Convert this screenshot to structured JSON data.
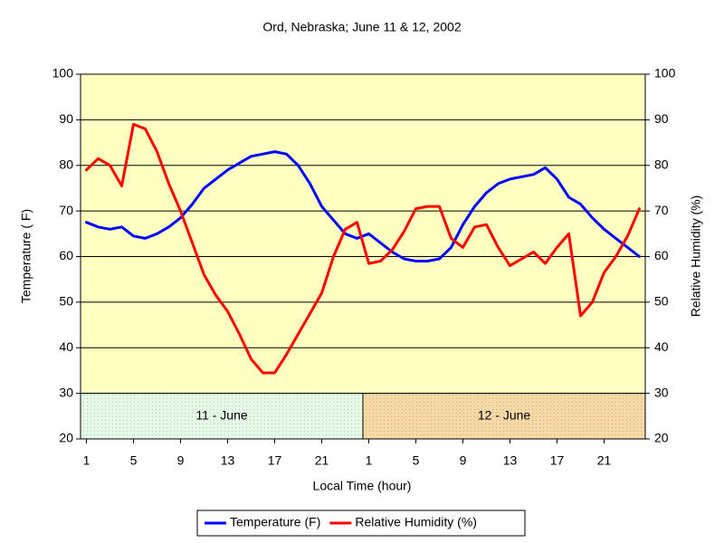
{
  "chart_data": {
    "type": "line",
    "title": "Ord, Nebraska; June 11 & 12, 2002",
    "x_label": "Local Time (hour)",
    "y_label": "Temperature ( F)",
    "y2_label": "Relative Humidity (%)",
    "categories": [
      "1",
      null,
      null,
      null,
      "5",
      null,
      null,
      null,
      "9",
      null,
      null,
      null,
      "13",
      null,
      null,
      null,
      "17",
      null,
      null,
      null,
      "21",
      null,
      null,
      null,
      "1",
      null,
      null,
      null,
      "5",
      null,
      null,
      null,
      "9",
      null,
      null,
      null,
      "13",
      null,
      null,
      null,
      "17",
      null,
      null,
      null,
      "21",
      null,
      null,
      null
    ],
    "day_labels": [
      "11 - June",
      "12 - June"
    ],
    "ylim": [
      20,
      100
    ],
    "yticks": [
      20,
      30,
      40,
      50,
      60,
      70,
      80,
      90,
      100
    ],
    "y2lim": [
      20,
      100
    ],
    "y2ticks": [
      20,
      30,
      40,
      50,
      60,
      70,
      80,
      90,
      100
    ],
    "grid": true,
    "legend": "bottom",
    "series": [
      {
        "name": "Temperature (F)",
        "color": "#0000ff",
        "values": [
          67.5,
          66.5,
          66,
          66.5,
          64.5,
          64,
          65,
          66.5,
          68.5,
          71.5,
          75,
          77,
          79,
          80.5,
          82,
          82.5,
          83,
          82.5,
          80,
          76,
          71,
          68,
          65,
          64,
          65,
          63,
          61,
          59.5,
          59,
          59,
          59.5,
          62,
          67,
          71,
          74,
          76,
          77,
          77.5,
          78,
          79.5,
          77,
          73,
          71.5,
          68.5,
          66,
          64,
          62,
          60
        ]
      },
      {
        "name": "Relative Humidity (%)",
        "color": "#ff0000",
        "axis": "y2",
        "values": [
          79,
          81.5,
          80,
          75.5,
          89,
          88,
          83,
          76,
          70,
          63,
          56,
          51.5,
          48,
          43,
          37.5,
          34.5,
          34.5,
          38.5,
          43,
          47.5,
          52,
          60,
          66,
          67.5,
          58.5,
          59,
          61.5,
          65.5,
          70.5,
          71,
          71,
          64,
          62,
          66.5,
          67,
          62,
          58,
          59.5,
          61,
          58.5,
          62,
          65,
          47,
          50,
          56.5,
          60,
          64.5,
          70.5
        ]
      }
    ]
  }
}
